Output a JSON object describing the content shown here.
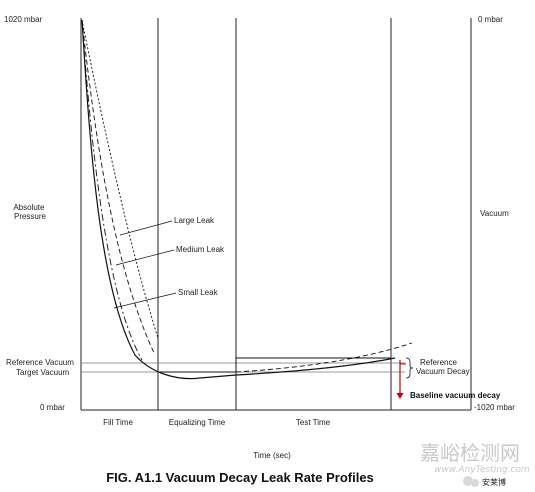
{
  "chart_data": {
    "type": "line",
    "title": "FIG. A1.1 Vacuum Decay Leak Rate Profiles",
    "xlabel": "Time (sec)",
    "ylabel_left": "Absolute\nPressure",
    "ylabel_right": "Vacuum",
    "left_axis_ticks": [
      "1020 mbar",
      "0 mbar"
    ],
    "right_axis_ticks": [
      "0 mbar",
      "-1020 mbar"
    ],
    "phases": [
      "Fill Time",
      "Equalizing Time",
      "Test Time"
    ],
    "reference_labels": [
      "Reference Vacuum",
      "Target Vacuum"
    ],
    "decay_label": "Reference\nVacuum Decay",
    "baseline_label": "Baseline vacuum decay",
    "leak_labels": [
      "Large Leak",
      "Medium Leak",
      "Small Leak"
    ],
    "watermark": "嘉峪检测网",
    "watermark_url": "www.AnyTesting.com",
    "wechat_badge": "安莱博",
    "colors": {
      "curve": "#111111",
      "annotation": "#cc0000"
    }
  }
}
